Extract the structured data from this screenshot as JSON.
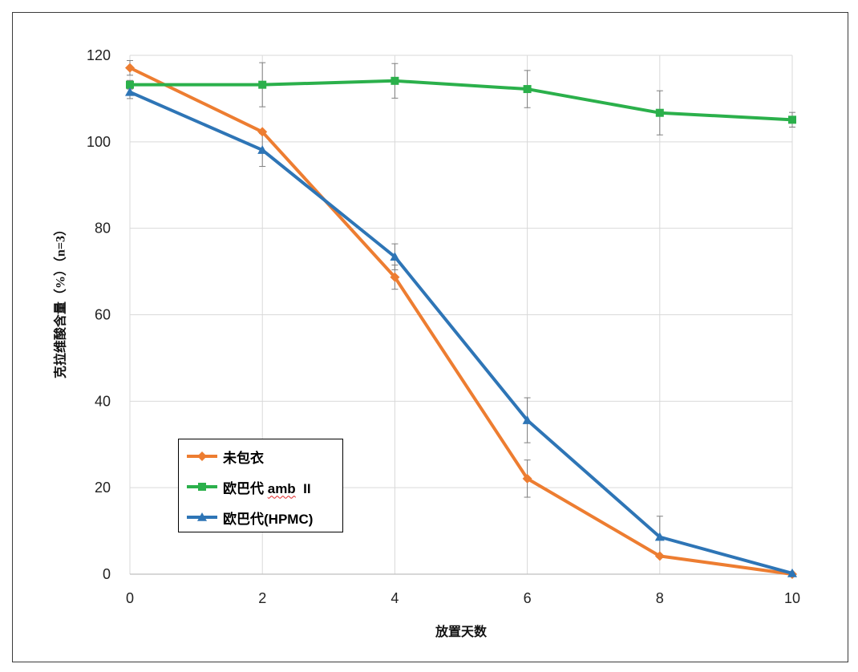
{
  "chart_data": {
    "type": "line",
    "xlabel": "放置天数",
    "ylabel": "克拉维酸含量（%）（n=3）",
    "x": [
      0,
      2,
      4,
      6,
      8,
      10
    ],
    "xlim": [
      0,
      10
    ],
    "ylim": [
      0,
      120
    ],
    "xticks": [
      "0",
      "2",
      "4",
      "6",
      "8",
      "10"
    ],
    "yticks": [
      "0",
      "20",
      "40",
      "60",
      "80",
      "100",
      "120"
    ],
    "grid": true,
    "grid_color": "#D9D9D9",
    "axis_color": "#BFBFBF",
    "error_bar_color": "#7F7F7F",
    "legend_position": "lower-left",
    "series": [
      {
        "name": "未包衣",
        "color": "#ED7D31",
        "marker": "diamond",
        "values": [
          117.1,
          102.3,
          68.7,
          22.1,
          4.2,
          0
        ],
        "error": [
          1.7,
          0,
          2.8,
          4.3,
          0,
          0
        ]
      },
      {
        "name": "欧巴代 amb  II",
        "color": "#2BB04B",
        "marker": "square",
        "values": [
          113.2,
          113.2,
          114.1,
          112.2,
          106.7,
          105.1
        ],
        "error": [
          1.0,
          5.1,
          4.0,
          4.3,
          5.1,
          1.7
        ]
      },
      {
        "name": "欧巴代(HPMC)",
        "color": "#2E75B6",
        "marker": "triangle",
        "values": [
          111.5,
          98.1,
          73.4,
          35.6,
          8.6,
          0.2
        ],
        "error": [
          1.5,
          3.8,
          3.0,
          5.2,
          4.8,
          0
        ]
      }
    ]
  }
}
